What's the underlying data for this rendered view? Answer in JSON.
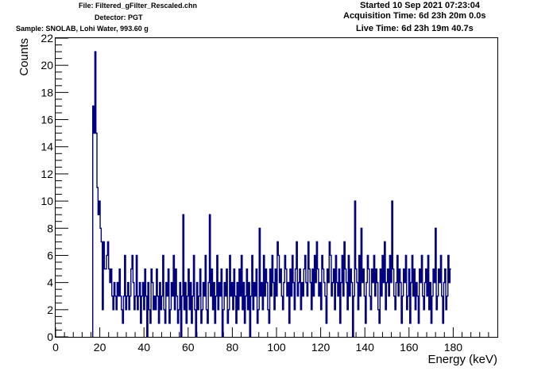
{
  "header": {
    "file": "File: Filtered_gFilter_Rescaled.chn",
    "detector": "Detector: PGT",
    "sample": "Sample: SNOLAB, Lohi Water, 993.60 g",
    "started": "Started 10 Sep 2021 07:23:04",
    "acquisition": "Acquisition Time: 6d 23h 20m 0.0s",
    "live": "Live Time: 6d 23h 19m 40.7s"
  },
  "colors": {
    "series": "#000080",
    "axis": "#000000"
  },
  "chart_data": {
    "type": "line",
    "title": "",
    "xlabel": "Energy (keV)",
    "ylabel": "Counts",
    "xlim": [
      0,
      200
    ],
    "ylim": [
      0,
      22
    ],
    "x_ticks": [
      0,
      20,
      40,
      60,
      80,
      100,
      120,
      140,
      160,
      180
    ],
    "y_ticks": [
      0,
      2,
      4,
      6,
      8,
      10,
      12,
      14,
      16,
      18,
      20,
      22
    ],
    "grid": false,
    "legend": "none",
    "bin_start_keV": 16.8,
    "bin_width_keV": 0.48,
    "values": [
      17,
      15,
      21,
      15,
      11,
      9,
      10,
      8,
      7,
      2,
      7,
      5,
      5,
      6,
      7,
      5,
      4,
      5,
      3,
      2,
      4,
      3,
      2,
      4,
      3,
      5,
      3,
      2,
      1,
      3,
      6,
      2,
      3,
      4,
      2,
      3,
      5,
      6,
      4,
      2,
      3,
      6,
      2,
      3,
      4,
      1,
      3,
      4,
      2,
      5,
      3,
      0,
      4,
      2,
      1,
      5,
      4,
      2,
      3,
      2,
      5,
      3,
      1,
      4,
      2,
      3,
      6,
      2,
      1,
      4,
      3,
      5,
      1,
      2,
      4,
      3,
      6,
      2,
      5,
      3,
      1,
      2,
      4,
      0,
      3,
      9,
      2,
      4,
      1,
      3,
      5,
      2,
      4,
      1,
      3,
      6,
      2,
      0,
      4,
      2,
      3,
      5,
      1,
      2,
      4,
      3,
      6,
      2,
      1,
      4,
      9,
      3,
      5,
      2,
      4,
      1,
      3,
      6,
      2,
      4,
      3,
      5,
      0,
      2,
      4,
      3,
      5,
      1,
      2,
      6,
      3,
      4,
      2,
      5,
      3,
      1,
      4,
      2,
      5,
      3,
      6,
      2,
      4,
      1,
      3,
      5,
      2,
      4,
      0,
      3,
      6,
      2,
      4,
      3,
      5,
      1,
      2,
      8,
      3,
      4,
      2,
      6,
      3,
      5,
      4,
      2,
      1,
      5,
      3,
      6,
      4,
      2,
      5,
      3,
      7,
      6,
      4,
      5,
      3,
      2,
      4,
      6,
      5,
      3,
      4,
      1,
      5,
      3,
      6,
      4,
      2,
      5,
      7,
      3,
      4,
      5,
      2,
      4,
      3,
      5,
      6,
      4,
      3,
      7,
      5,
      4,
      2,
      5,
      3,
      6,
      4,
      7,
      5,
      3,
      4,
      2,
      6,
      5,
      4,
      3,
      1,
      5,
      4,
      7,
      6,
      3,
      4,
      5,
      2,
      6,
      4,
      3,
      5,
      1,
      4,
      6,
      3,
      7,
      5,
      4,
      2,
      6,
      3,
      5,
      4,
      0,
      3,
      10,
      5,
      4,
      2,
      6,
      3,
      8,
      4,
      5,
      3,
      1,
      4,
      6,
      5,
      3,
      2,
      5,
      4,
      6,
      3,
      5,
      4,
      2,
      1,
      5,
      3,
      6,
      4,
      7,
      2,
      4,
      5,
      3,
      6,
      4,
      10,
      5,
      3,
      2,
      4,
      6,
      3,
      5,
      4,
      1,
      3,
      5,
      4,
      6,
      2,
      3,
      5,
      1,
      4,
      6,
      3,
      5,
      2,
      4,
      3,
      1,
      5,
      4,
      6,
      3,
      2,
      4,
      5,
      3,
      6,
      2,
      4,
      1,
      3,
      5,
      4,
      8,
      2,
      3,
      5,
      4,
      6,
      3,
      1,
      4,
      5,
      2,
      3,
      6,
      4,
      5
    ]
  }
}
